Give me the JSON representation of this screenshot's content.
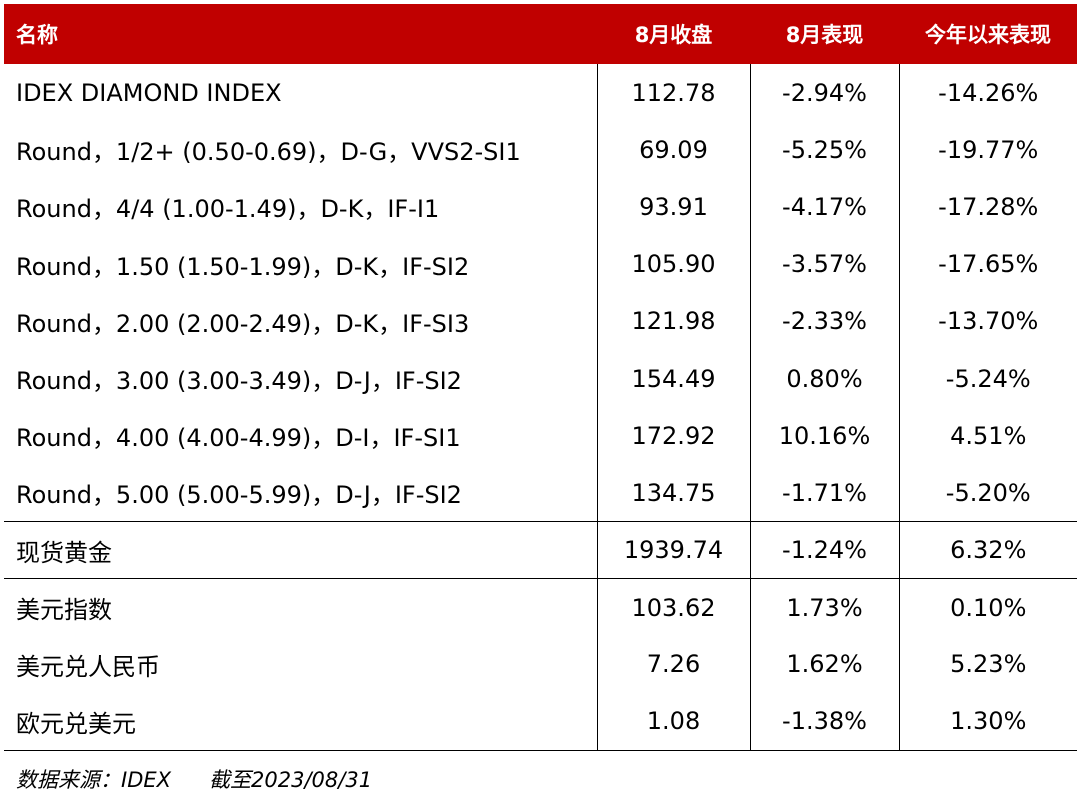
{
  "table": {
    "headers": [
      "名称",
      "8月收盘",
      "8月表现",
      "今年以来表现"
    ],
    "rows": [
      [
        "IDEX DIAMOND INDEX",
        "112.78",
        "-2.94%",
        "-14.26%"
      ],
      [
        "Round，1/2+ (0.50-0.69)，D-G，VVS2-SI1",
        "69.09",
        "-5.25%",
        "-19.77%"
      ],
      [
        "Round，4/4 (1.00-1.49)，D-K，IF-I1",
        "93.91",
        "-4.17%",
        "-17.28%"
      ],
      [
        "Round，1.50 (1.50-1.99)，D-K，IF-SI2",
        "105.90",
        "-3.57%",
        "-17.65%"
      ],
      [
        "Round，2.00 (2.00-2.49)，D-K，IF-SI3",
        "121.98",
        "-2.33%",
        "-13.70%"
      ],
      [
        "Round，3.00 (3.00-3.49)，D-J，IF-SI2",
        "154.49",
        "0.80%",
        "-5.24%"
      ],
      [
        "Round，4.00 (4.00-4.99)，D-I，IF-SI1",
        "172.92",
        "10.16%",
        "4.51%"
      ],
      [
        "Round，5.00 (5.00-5.99)，D-J，IF-SI2",
        "134.75",
        "-1.71%",
        "-5.20%"
      ],
      [
        "现货黄金",
        "1939.74",
        "-1.24%",
        "6.32%"
      ],
      [
        "美元指数",
        "103.62",
        "1.73%",
        "0.10%"
      ],
      [
        "美元兑人民币",
        "7.26",
        "1.62%",
        "5.23%"
      ],
      [
        "欧元兑美元",
        "1.08",
        "-1.38%",
        "1.30%"
      ]
    ],
    "header_color": "#c00000"
  },
  "source": {
    "label": "数据来源：IDEX",
    "date": "截至2023/08/31"
  }
}
